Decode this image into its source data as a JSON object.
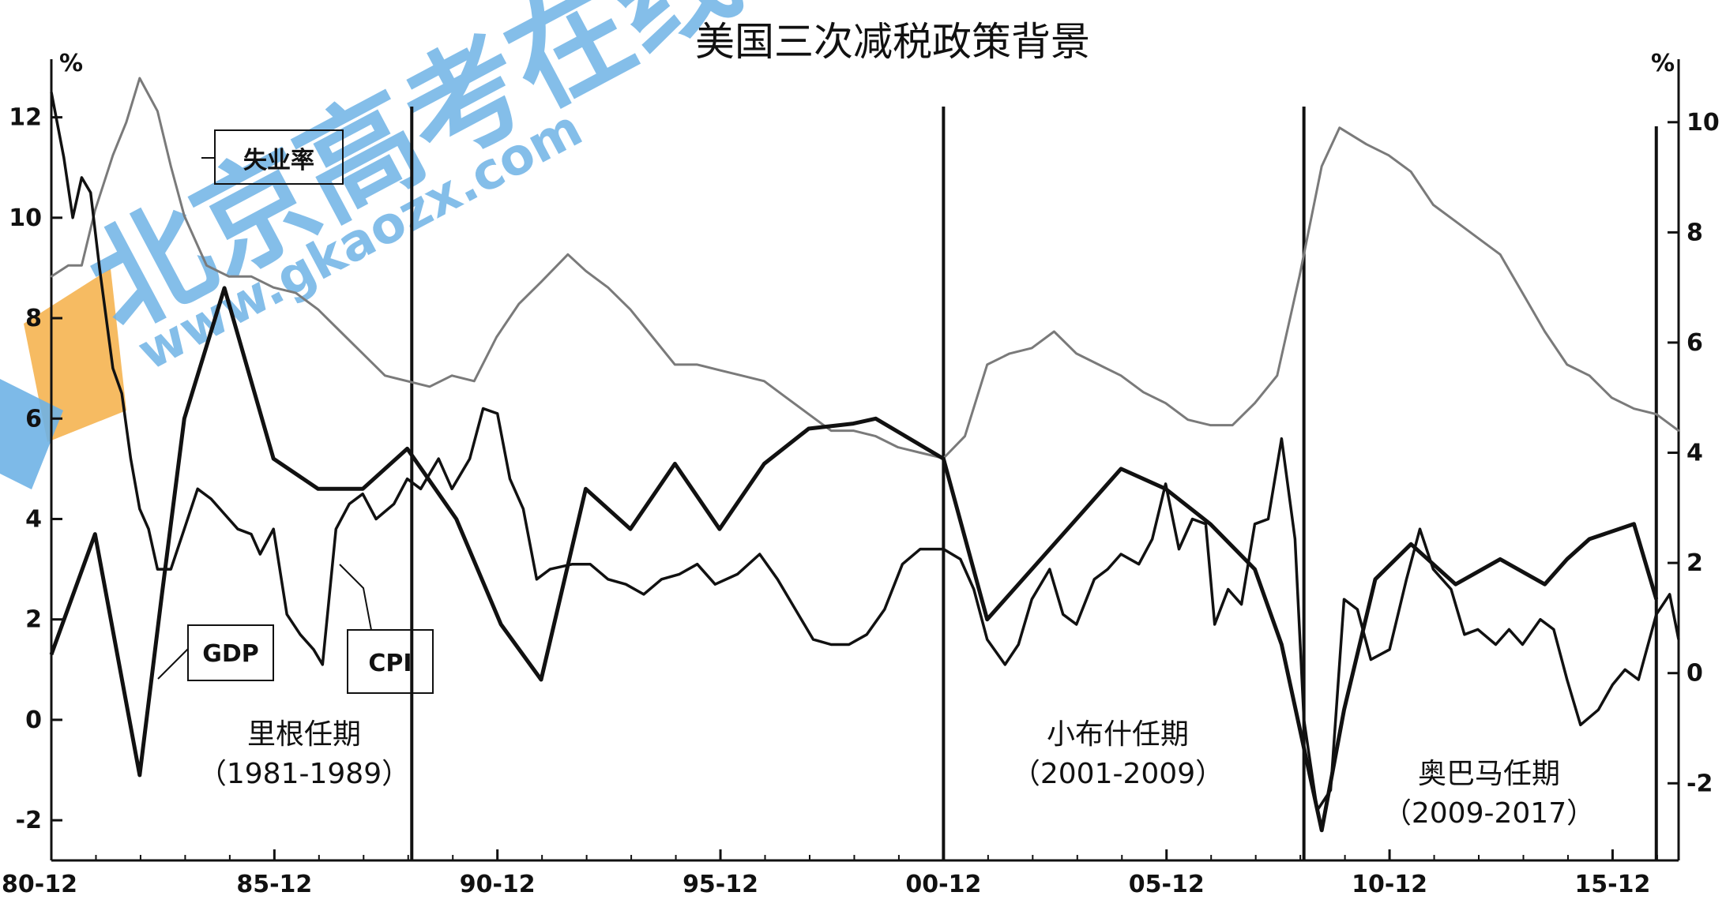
{
  "watermark": {
    "main_text": "北京高考在线",
    "url_text": "www.gkaozx.com"
  },
  "chart_data": {
    "type": "line",
    "title": "美国三次减税政策背景",
    "xlabel": "",
    "ylabel_left": "%",
    "ylabel_right": "%",
    "x_domain": [
      1980.92,
      2017.4
    ],
    "x_ticks": [
      {
        "label": "80-12",
        "x": 1980.92
      },
      {
        "label": "85-12",
        "x": 1985.92
      },
      {
        "label": "90-12",
        "x": 1990.92
      },
      {
        "label": "95-12",
        "x": 1995.92
      },
      {
        "label": "00-12",
        "x": 2000.92
      },
      {
        "label": "05-12",
        "x": 2005.92
      },
      {
        "label": "10-12",
        "x": 2010.92
      },
      {
        "label": "15-12",
        "x": 2015.92
      }
    ],
    "y_left": {
      "ylim": [
        -2.8,
        13
      ],
      "ticks": [
        -2,
        0,
        2,
        4,
        6,
        8,
        10,
        12
      ]
    },
    "y_right": {
      "ylim": [
        -3.4,
        11.0
      ],
      "ticks": [
        -2,
        0,
        2,
        4,
        6,
        8,
        10
      ]
    },
    "dividers": [
      1989.0,
      2000.92,
      2009.0,
      2016.9
    ],
    "series": [
      {
        "name": "失业率",
        "axis": "right",
        "points": [
          [
            1980.92,
            7.2
          ],
          [
            1981.3,
            7.4
          ],
          [
            1981.6,
            7.4
          ],
          [
            1981.9,
            8.4
          ],
          [
            1982.3,
            9.4
          ],
          [
            1982.6,
            10.0
          ],
          [
            1982.9,
            10.8
          ],
          [
            1983.3,
            10.2
          ],
          [
            1983.6,
            9.2
          ],
          [
            1983.9,
            8.3
          ],
          [
            1984.4,
            7.4
          ],
          [
            1984.9,
            7.2
          ],
          [
            1985.4,
            7.2
          ],
          [
            1985.9,
            7.0
          ],
          [
            1986.4,
            6.9
          ],
          [
            1986.9,
            6.6
          ],
          [
            1987.4,
            6.2
          ],
          [
            1987.9,
            5.8
          ],
          [
            1988.4,
            5.4
          ],
          [
            1988.9,
            5.3
          ],
          [
            1989.4,
            5.2
          ],
          [
            1989.9,
            5.4
          ],
          [
            1990.4,
            5.3
          ],
          [
            1990.9,
            6.1
          ],
          [
            1991.4,
            6.7
          ],
          [
            1991.9,
            7.1
          ],
          [
            1992.5,
            7.6
          ],
          [
            1992.9,
            7.3
          ],
          [
            1993.4,
            7.0
          ],
          [
            1993.9,
            6.6
          ],
          [
            1994.4,
            6.1
          ],
          [
            1994.9,
            5.6
          ],
          [
            1995.4,
            5.6
          ],
          [
            1995.9,
            5.5
          ],
          [
            1996.4,
            5.4
          ],
          [
            1996.9,
            5.3
          ],
          [
            1997.4,
            5.0
          ],
          [
            1997.9,
            4.7
          ],
          [
            1998.4,
            4.4
          ],
          [
            1998.9,
            4.4
          ],
          [
            1999.4,
            4.3
          ],
          [
            1999.9,
            4.1
          ],
          [
            2000.4,
            4.0
          ],
          [
            2000.92,
            3.9
          ],
          [
            2001.4,
            4.3
          ],
          [
            2001.9,
            5.6
          ],
          [
            2002.4,
            5.8
          ],
          [
            2002.9,
            5.9
          ],
          [
            2003.4,
            6.2
          ],
          [
            2003.9,
            5.8
          ],
          [
            2004.4,
            5.6
          ],
          [
            2004.9,
            5.4
          ],
          [
            2005.4,
            5.1
          ],
          [
            2005.9,
            4.9
          ],
          [
            2006.4,
            4.6
          ],
          [
            2006.9,
            4.5
          ],
          [
            2007.4,
            4.5
          ],
          [
            2007.9,
            4.9
          ],
          [
            2008.4,
            5.4
          ],
          [
            2008.9,
            7.2
          ],
          [
            2009.4,
            9.2
          ],
          [
            2009.8,
            9.9
          ],
          [
            2010.4,
            9.6
          ],
          [
            2010.9,
            9.4
          ],
          [
            2011.4,
            9.1
          ],
          [
            2011.9,
            8.5
          ],
          [
            2012.4,
            8.2
          ],
          [
            2012.9,
            7.9
          ],
          [
            2013.4,
            7.6
          ],
          [
            2013.9,
            6.9
          ],
          [
            2014.4,
            6.2
          ],
          [
            2014.9,
            5.6
          ],
          [
            2015.4,
            5.4
          ],
          [
            2015.9,
            5.0
          ],
          [
            2016.4,
            4.8
          ],
          [
            2016.9,
            4.7
          ],
          [
            2017.4,
            4.4
          ]
        ]
      },
      {
        "name": "GDP",
        "axis": "left",
        "points": [
          [
            1980.92,
            1.3
          ],
          [
            1981.9,
            3.7
          ],
          [
            1982.9,
            -1.1
          ],
          [
            1983.4,
            2.5
          ],
          [
            1983.9,
            6.0
          ],
          [
            1984.8,
            8.6
          ],
          [
            1985.9,
            5.2
          ],
          [
            1986.9,
            4.6
          ],
          [
            1987.9,
            4.6
          ],
          [
            1988.9,
            5.4
          ],
          [
            1990.0,
            4.0
          ],
          [
            1991.0,
            1.9
          ],
          [
            1991.9,
            0.8
          ],
          [
            1992.9,
            4.6
          ],
          [
            1993.9,
            3.8
          ],
          [
            1994.9,
            5.1
          ],
          [
            1995.9,
            3.8
          ],
          [
            1996.9,
            5.1
          ],
          [
            1997.9,
            5.8
          ],
          [
            1998.9,
            5.9
          ],
          [
            1999.4,
            6.0
          ],
          [
            2000.92,
            5.2
          ],
          [
            2001.9,
            2.0
          ],
          [
            2002.9,
            3.0
          ],
          [
            2003.9,
            4.0
          ],
          [
            2004.9,
            5.0
          ],
          [
            2005.9,
            4.6
          ],
          [
            2006.9,
            3.9
          ],
          [
            2007.9,
            3.0
          ],
          [
            2008.5,
            1.5
          ],
          [
            2009.4,
            -2.2
          ],
          [
            2009.9,
            0.2
          ],
          [
            2010.6,
            2.8
          ],
          [
            2011.4,
            3.5
          ],
          [
            2012.4,
            2.7
          ],
          [
            2013.4,
            3.2
          ],
          [
            2014.4,
            2.7
          ],
          [
            2014.9,
            3.2
          ],
          [
            2015.4,
            3.6
          ],
          [
            2016.4,
            3.9
          ],
          [
            2016.9,
            2.4
          ]
        ]
      },
      {
        "name": "CPI",
        "axis": "left",
        "points": [
          [
            1980.92,
            12.5
          ],
          [
            1981.2,
            11.2
          ],
          [
            1981.4,
            10.0
          ],
          [
            1981.6,
            10.8
          ],
          [
            1981.8,
            10.5
          ],
          [
            1982.0,
            9.0
          ],
          [
            1982.3,
            7.0
          ],
          [
            1982.5,
            6.5
          ],
          [
            1982.7,
            5.2
          ],
          [
            1982.9,
            4.2
          ],
          [
            1983.1,
            3.8
          ],
          [
            1983.3,
            3.0
          ],
          [
            1983.6,
            3.0
          ],
          [
            1983.9,
            3.8
          ],
          [
            1984.2,
            4.6
          ],
          [
            1984.5,
            4.4
          ],
          [
            1984.8,
            4.1
          ],
          [
            1985.1,
            3.8
          ],
          [
            1985.4,
            3.7
          ],
          [
            1985.6,
            3.3
          ],
          [
            1985.9,
            3.8
          ],
          [
            1986.2,
            2.1
          ],
          [
            1986.5,
            1.7
          ],
          [
            1986.8,
            1.4
          ],
          [
            1987.0,
            1.1
          ],
          [
            1987.3,
            3.8
          ],
          [
            1987.6,
            4.3
          ],
          [
            1987.9,
            4.5
          ],
          [
            1988.2,
            4.0
          ],
          [
            1988.6,
            4.3
          ],
          [
            1988.9,
            4.8
          ],
          [
            1989.2,
            4.6
          ],
          [
            1989.6,
            5.2
          ],
          [
            1989.9,
            4.6
          ],
          [
            1990.3,
            5.2
          ],
          [
            1990.6,
            6.2
          ],
          [
            1990.92,
            6.1
          ],
          [
            1991.2,
            4.8
          ],
          [
            1991.5,
            4.2
          ],
          [
            1991.8,
            2.8
          ],
          [
            1992.1,
            3.0
          ],
          [
            1992.6,
            3.1
          ],
          [
            1993.0,
            3.1
          ],
          [
            1993.4,
            2.8
          ],
          [
            1993.8,
            2.7
          ],
          [
            1994.2,
            2.5
          ],
          [
            1994.6,
            2.8
          ],
          [
            1995.0,
            2.9
          ],
          [
            1995.4,
            3.1
          ],
          [
            1995.8,
            2.7
          ],
          [
            1996.3,
            2.9
          ],
          [
            1996.8,
            3.3
          ],
          [
            1997.2,
            2.8
          ],
          [
            1997.6,
            2.2
          ],
          [
            1998.0,
            1.6
          ],
          [
            1998.4,
            1.5
          ],
          [
            1998.8,
            1.5
          ],
          [
            1999.2,
            1.7
          ],
          [
            1999.6,
            2.2
          ],
          [
            2000.0,
            3.1
          ],
          [
            2000.4,
            3.4
          ],
          [
            2000.92,
            3.4
          ],
          [
            2001.3,
            3.2
          ],
          [
            2001.6,
            2.6
          ],
          [
            2001.9,
            1.6
          ],
          [
            2002.3,
            1.1
          ],
          [
            2002.6,
            1.5
          ],
          [
            2002.9,
            2.4
          ],
          [
            2003.3,
            3.0
          ],
          [
            2003.6,
            2.1
          ],
          [
            2003.9,
            1.9
          ],
          [
            2004.3,
            2.8
          ],
          [
            2004.6,
            3.0
          ],
          [
            2004.9,
            3.3
          ],
          [
            2005.3,
            3.1
          ],
          [
            2005.6,
            3.6
          ],
          [
            2005.9,
            4.7
          ],
          [
            2006.2,
            3.4
          ],
          [
            2006.5,
            4.0
          ],
          [
            2006.8,
            3.9
          ],
          [
            2007.0,
            1.9
          ],
          [
            2007.3,
            2.6
          ],
          [
            2007.6,
            2.3
          ],
          [
            2007.9,
            3.9
          ],
          [
            2008.2,
            4.0
          ],
          [
            2008.5,
            5.6
          ],
          [
            2008.8,
            3.6
          ],
          [
            2009.0,
            0.0
          ],
          [
            2009.3,
            -1.8
          ],
          [
            2009.6,
            -1.4
          ],
          [
            2009.9,
            2.4
          ],
          [
            2010.2,
            2.2
          ],
          [
            2010.5,
            1.2
          ],
          [
            2010.92,
            1.4
          ],
          [
            2011.3,
            2.8
          ],
          [
            2011.6,
            3.8
          ],
          [
            2011.9,
            3.0
          ],
          [
            2012.3,
            2.6
          ],
          [
            2012.6,
            1.7
          ],
          [
            2012.9,
            1.8
          ],
          [
            2013.3,
            1.5
          ],
          [
            2013.6,
            1.8
          ],
          [
            2013.9,
            1.5
          ],
          [
            2014.3,
            2.0
          ],
          [
            2014.6,
            1.8
          ],
          [
            2014.9,
            0.8
          ],
          [
            2015.2,
            -0.1
          ],
          [
            2015.6,
            0.2
          ],
          [
            2015.92,
            0.7
          ],
          [
            2016.2,
            1.0
          ],
          [
            2016.5,
            0.8
          ],
          [
            2016.9,
            2.1
          ],
          [
            2017.2,
            2.5
          ],
          [
            2017.4,
            1.6
          ]
        ]
      }
    ],
    "annotations": {
      "unemployment_label": "失业率",
      "gdp_label": "GDP",
      "cpi_label": "CPI",
      "reagan_title": "里根任期",
      "reagan_years": "（1981-1989）",
      "bush_title": "小布什任期",
      "bush_years": "（2001-2009）",
      "obama_title": "奥巴马任期",
      "obama_years": "（2009-2017）"
    },
    "colors": {
      "unemployment": "#7a7a7a",
      "gdp": "#111111",
      "cpi": "#111111",
      "axis": "#111111"
    },
    "grid": false,
    "legend": "none"
  }
}
